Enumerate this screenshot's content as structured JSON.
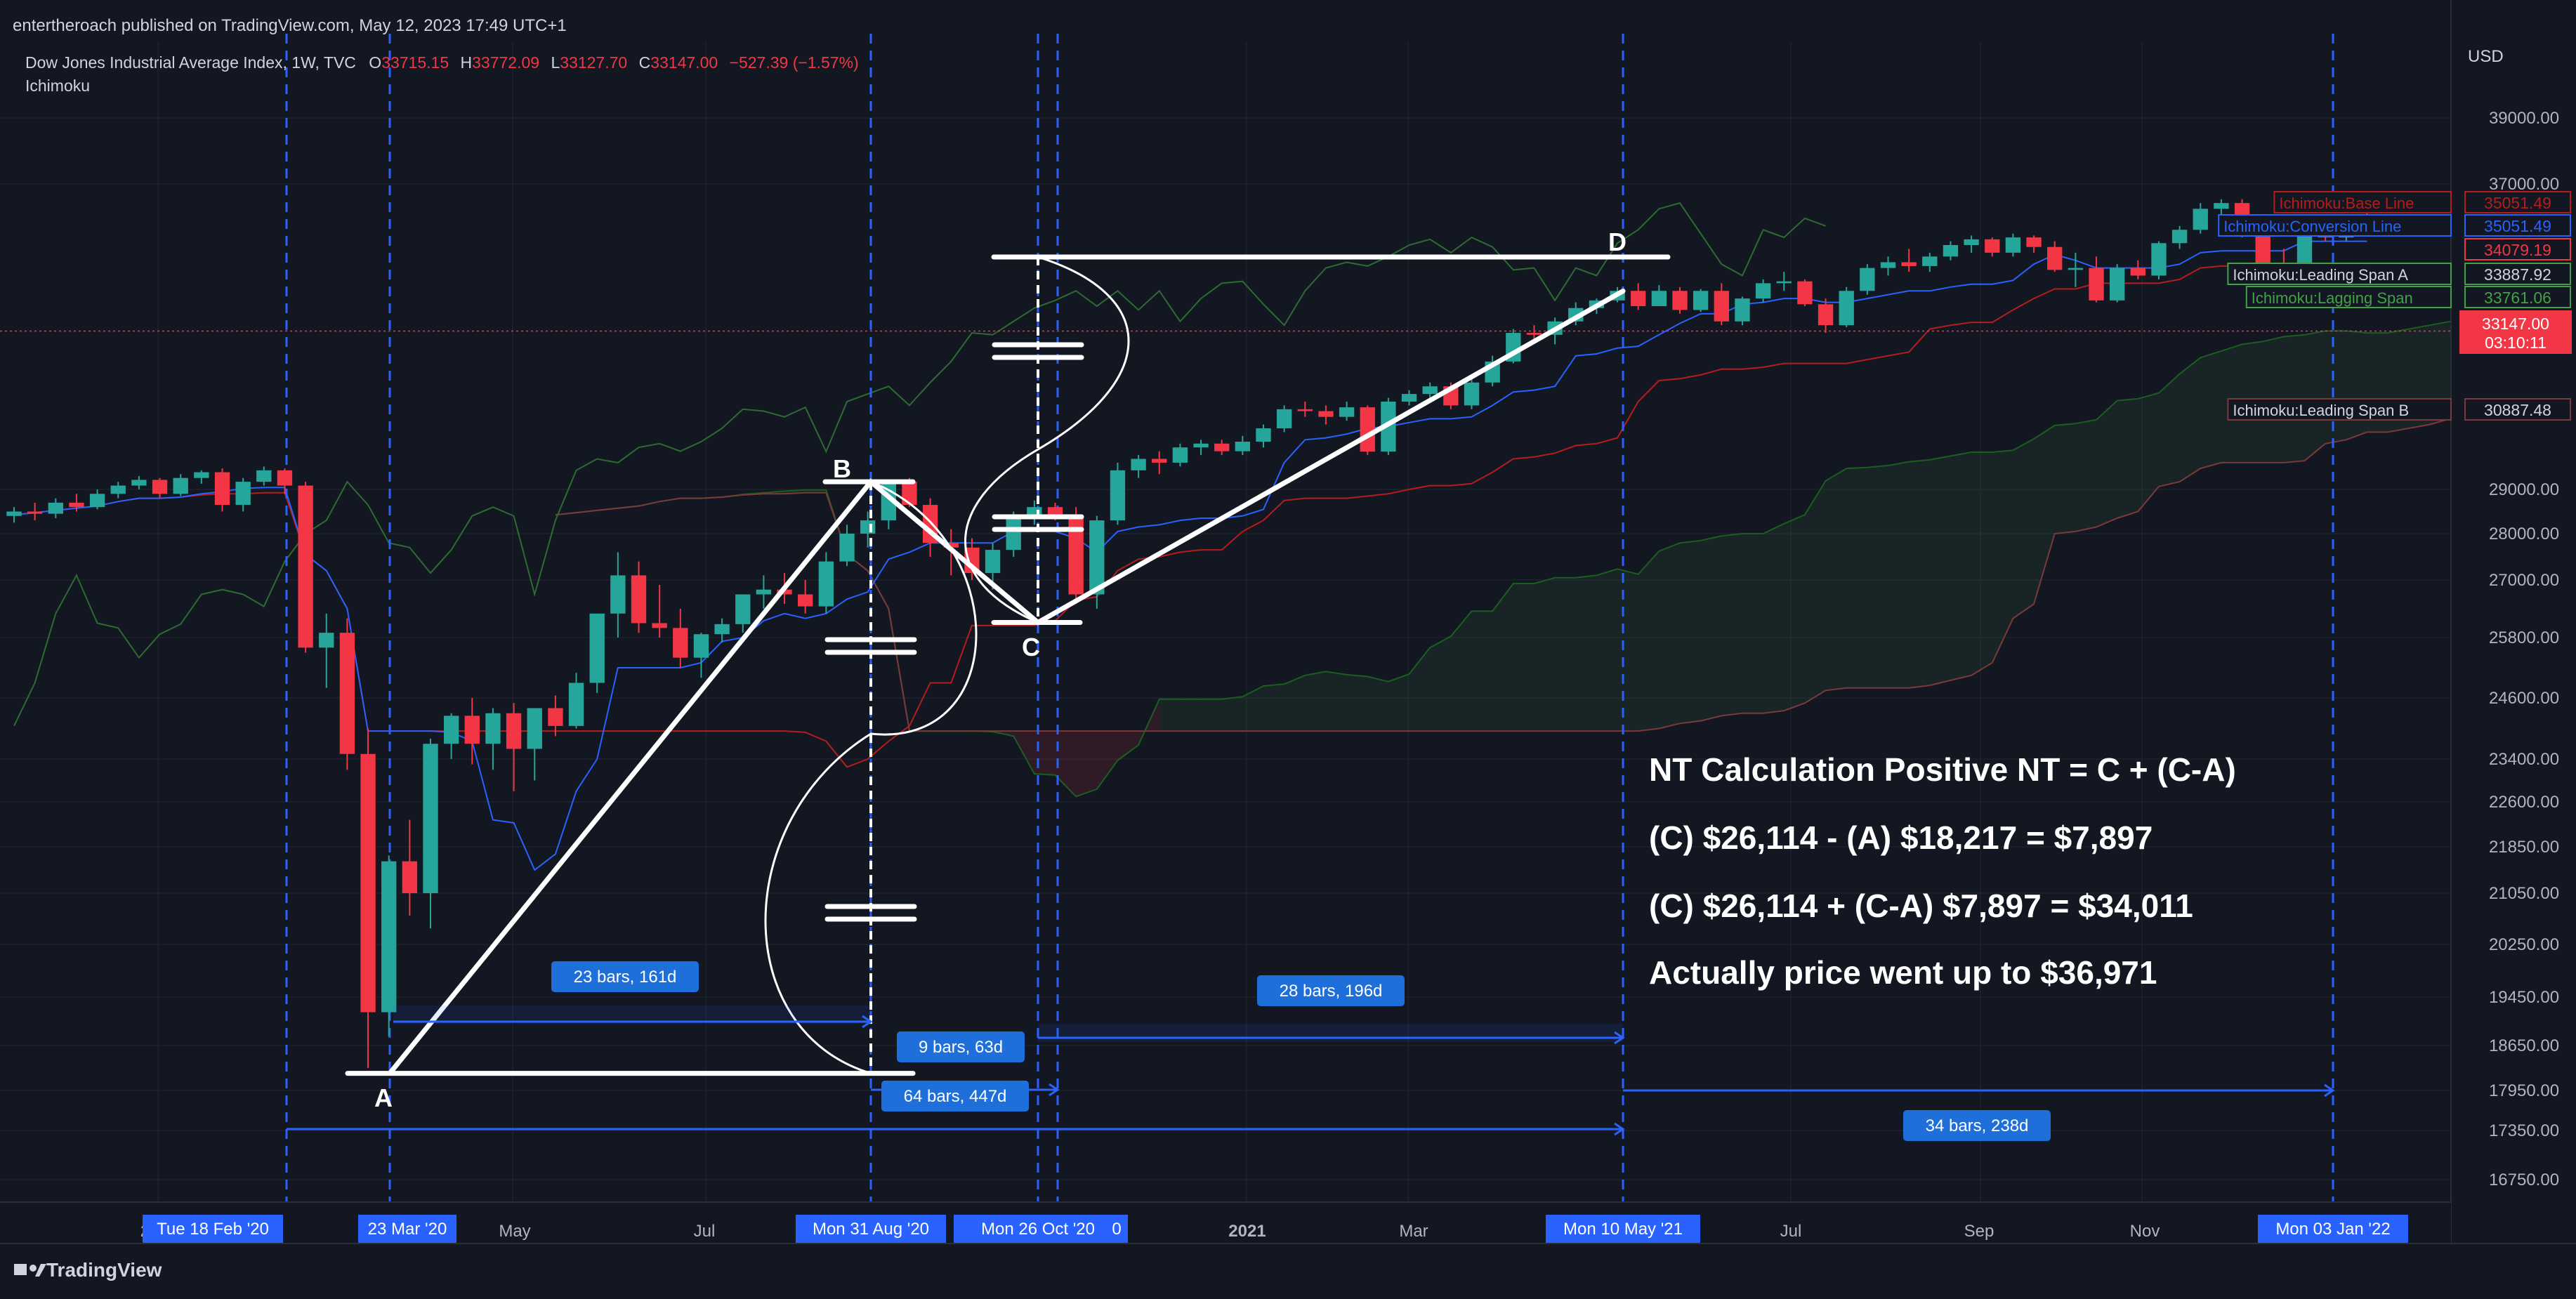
{
  "header": {
    "published": "entertheroach published on TradingView.com, May 12, 2023 17:49 UTC+1",
    "symbol": "Dow Jones Industrial Average Index, 1W, TVC",
    "o_label": "O",
    "o_value": "33715.15",
    "h_label": "H",
    "h_value": "33772.09",
    "l_label": "L",
    "l_value": "33127.70",
    "c_label": "C",
    "c_value": "33147.00",
    "change": "−527.39 (−1.57%)",
    "indicator": "Ichimoku"
  },
  "currency": "USD",
  "footer_brand": "TradingView",
  "colors": {
    "background": "#131722",
    "up": "#26a69a",
    "down": "#f23645",
    "conversion": "#2962ff",
    "base": "#b71c1c",
    "span_a": "#1b5e20",
    "span_b": "#7b3a3a",
    "lagging": "#43a047",
    "drawing": "#ffffff",
    "marker_blue": "#2962ff"
  },
  "chart_data": {
    "type": "candlestick",
    "title": "Dow Jones Industrial Average Index, 1W, TVC",
    "ylabel": "USD",
    "y_ticks": [
      16750,
      17350,
      17950,
      18650,
      19450,
      20250,
      21050,
      21850,
      22600,
      23400,
      24600,
      25800,
      27000,
      28000,
      29000,
      37000,
      39000
    ],
    "y_tick_labels": [
      "16750.00",
      "17350.00",
      "17950.00",
      "18650.00",
      "19450.00",
      "20250.00",
      "21050.00",
      "21850.00",
      "22600.00",
      "23400.00",
      "24600.00",
      "25800.00",
      "27000.00",
      "28000.00",
      "29000.00",
      "37000.00",
      "39000.00"
    ],
    "x_ticks": [
      "2020",
      "May",
      "Jul",
      "2021",
      "Mar",
      "Jul",
      "Sep",
      "Nov"
    ],
    "x_markers": [
      "Tue 18 Feb '20",
      "23 Mar '20",
      "Mon 31 Aug '20",
      "Mon 26 Oct '20",
      "0",
      "Mon 10 May '21",
      "Mon 03 Jan '22"
    ],
    "last_price": "33147.00",
    "countdown": "03:10:11",
    "indicator_labels": [
      {
        "name": "Ichimoku:Base Line",
        "value": "35051.49"
      },
      {
        "name": "Ichimoku:Conversion Line",
        "value": "35051.49"
      },
      {
        "name": "",
        "value": "34079.19"
      },
      {
        "name": "Ichimoku:Leading Span A",
        "value": "33887.92"
      },
      {
        "name": "Ichimoku:Lagging Span",
        "value": "33761.06"
      },
      {
        "name": "Ichimoku:Leading Span B",
        "value": "30887.48"
      }
    ],
    "pattern_points": [
      {
        "label": "A",
        "date": "23 Mar '20",
        "price": 18217
      },
      {
        "label": "B",
        "date": "Mon 31 Aug '20",
        "price": 29200
      },
      {
        "label": "C",
        "date": "Mon 26 Oct '20",
        "price": 26114
      },
      {
        "label": "D",
        "date": "Mon 10 May '21",
        "price": 34011
      }
    ],
    "range_labels": [
      "23 bars, 161d",
      "9 bars, 63d",
      "64 bars, 447d",
      "28 bars, 196d",
      "34 bars, 238d"
    ],
    "candles": [
      [
        28400,
        28600,
        28250,
        28500
      ],
      [
        28500,
        28700,
        28300,
        28450
      ],
      [
        28450,
        28800,
        28350,
        28700
      ],
      [
        28700,
        28900,
        28500,
        28600
      ],
      [
        28600,
        29000,
        28550,
        28900
      ],
      [
        28900,
        29200,
        28800,
        29100
      ],
      [
        29100,
        29350,
        29000,
        29250
      ],
      [
        29250,
        29300,
        28800,
        28900
      ],
      [
        28900,
        29400,
        28850,
        29300
      ],
      [
        29300,
        29500,
        29150,
        29450
      ],
      [
        29450,
        29550,
        28500,
        28650
      ],
      [
        28650,
        29300,
        28500,
        29200
      ],
      [
        29200,
        29600,
        29100,
        29500
      ],
      [
        29500,
        29550,
        28900,
        29100
      ],
      [
        29100,
        29200,
        25500,
        25600
      ],
      [
        25600,
        26300,
        24800,
        25900
      ],
      [
        25900,
        26200,
        23200,
        23500
      ],
      [
        23500,
        24000,
        18300,
        19200
      ],
      [
        19200,
        21700,
        18800,
        21600
      ],
      [
        21600,
        22300,
        20700,
        21050
      ],
      [
        21050,
        23800,
        20500,
        23700
      ],
      [
        23700,
        24300,
        23400,
        24250
      ],
      [
        24250,
        24600,
        23300,
        23700
      ],
      [
        23700,
        24400,
        23200,
        24300
      ],
      [
        24300,
        24500,
        22800,
        23600
      ],
      [
        23600,
        24350,
        23000,
        24400
      ],
      [
        24400,
        24650,
        23850,
        24050
      ],
      [
        24050,
        25100,
        24000,
        24900
      ],
      [
        24900,
        26300,
        24700,
        26300
      ],
      [
        26300,
        27600,
        25800,
        27100
      ],
      [
        27100,
        27400,
        25900,
        26100
      ],
      [
        26100,
        26900,
        25800,
        26000
      ],
      [
        26000,
        26400,
        25200,
        25400
      ],
      [
        25400,
        25900,
        25000,
        25870
      ],
      [
        25870,
        26200,
        25700,
        26080
      ],
      [
        26080,
        26700,
        25900,
        26700
      ],
      [
        26700,
        27100,
        26400,
        26800
      ],
      [
        26800,
        27150,
        26500,
        26700
      ],
      [
        26700,
        27000,
        26300,
        26450
      ],
      [
        26450,
        27600,
        26300,
        27400
      ],
      [
        27400,
        28200,
        27300,
        28000
      ],
      [
        28000,
        28500,
        27700,
        28300
      ],
      [
        28300,
        29200,
        28100,
        29200
      ],
      [
        29200,
        29300,
        28600,
        28650
      ],
      [
        28650,
        28800,
        27500,
        27800
      ],
      [
        27800,
        28100,
        27100,
        27700
      ],
      [
        27700,
        27900,
        27000,
        27150
      ],
      [
        27150,
        27800,
        26800,
        27650
      ],
      [
        27650,
        28500,
        27500,
        28400
      ],
      [
        28400,
        28750,
        28200,
        28600
      ],
      [
        28600,
        28700,
        28300,
        28400
      ],
      [
        28400,
        28600,
        26500,
        26700
      ],
      [
        26700,
        28400,
        26400,
        28300
      ],
      [
        28300,
        29700,
        28200,
        29500
      ],
      [
        29500,
        29900,
        29300,
        29800
      ],
      [
        29800,
        30000,
        29400,
        29700
      ],
      [
        29700,
        30200,
        29600,
        30100
      ],
      [
        30100,
        30300,
        29900,
        30200
      ],
      [
        30200,
        30300,
        29900,
        30000
      ],
      [
        30000,
        30400,
        29900,
        30250
      ],
      [
        30250,
        30700,
        30100,
        30600
      ],
      [
        30600,
        31200,
        30500,
        31100
      ],
      [
        31100,
        31300,
        30900,
        31050
      ],
      [
        31050,
        31200,
        30700,
        30900
      ],
      [
        30900,
        31300,
        30800,
        31150
      ],
      [
        31150,
        31200,
        29900,
        29990
      ],
      [
        29990,
        31400,
        29900,
        31300
      ],
      [
        31300,
        31600,
        31200,
        31500
      ],
      [
        31500,
        31800,
        31400,
        31700
      ],
      [
        31700,
        31800,
        31100,
        31200
      ],
      [
        31200,
        31900,
        31100,
        31800
      ],
      [
        31800,
        32500,
        31700,
        32350
      ],
      [
        32350,
        33200,
        32300,
        33100
      ],
      [
        33100,
        33300,
        32900,
        33050
      ],
      [
        33050,
        33500,
        32800,
        33400
      ],
      [
        33400,
        33900,
        33300,
        33750
      ],
      [
        33750,
        34000,
        33600,
        33950
      ],
      [
        33950,
        34300,
        33900,
        34200
      ],
      [
        34200,
        34400,
        33700,
        33800
      ],
      [
        33800,
        34350,
        33800,
        34200
      ],
      [
        34200,
        34300,
        33600,
        33700
      ],
      [
        33700,
        34250,
        33650,
        34200
      ],
      [
        34200,
        34400,
        33300,
        33400
      ],
      [
        33400,
        34050,
        33300,
        34000
      ],
      [
        34000,
        34500,
        33900,
        34400
      ],
      [
        34400,
        34700,
        34200,
        34450
      ],
      [
        34450,
        34500,
        33800,
        33850
      ],
      [
        33850,
        34000,
        33100,
        33300
      ],
      [
        33300,
        34300,
        33250,
        34200
      ],
      [
        34200,
        34900,
        34100,
        34800
      ],
      [
        34800,
        35100,
        34600,
        34950
      ],
      [
        34950,
        35300,
        34700,
        34850
      ],
      [
        34850,
        35200,
        34700,
        35100
      ],
      [
        35100,
        35500,
        35000,
        35400
      ],
      [
        35400,
        35650,
        35200,
        35550
      ],
      [
        35550,
        35600,
        35100,
        35200
      ],
      [
        35200,
        35700,
        35100,
        35600
      ],
      [
        35600,
        35650,
        35200,
        35350
      ],
      [
        35350,
        35500,
        34700,
        34750
      ],
      [
        34750,
        35200,
        34300,
        34800
      ],
      [
        34800,
        35100,
        33900,
        33950
      ],
      [
        33950,
        34900,
        33900,
        34800
      ],
      [
        34800,
        35000,
        34500,
        34600
      ],
      [
        34600,
        35500,
        34500,
        35450
      ],
      [
        35450,
        35900,
        35300,
        35800
      ],
      [
        35800,
        36500,
        35700,
        36350
      ],
      [
        36350,
        36600,
        36100,
        36500
      ],
      [
        36500,
        36600,
        35600,
        35700
      ],
      [
        35700,
        36000,
        34800,
        34900
      ],
      [
        34900,
        35300,
        34400,
        34600
      ],
      [
        34600,
        35900,
        34500,
        35800
      ],
      [
        35800,
        36000,
        35500,
        35600
      ],
      [
        35600,
        36200,
        35500,
        36100
      ],
      [
        36100,
        36250,
        35800,
        35900
      ]
    ]
  },
  "annotations": {
    "point_a": "A",
    "point_b": "B",
    "point_c": "C",
    "point_d": "D",
    "nt_title": "NT Calculation Positive NT = C + (C-A)",
    "nt_line1": "(C) $26,114 - (A) $18,217 = $7,897",
    "nt_line2": "(C) $26,114 + (C-A) $7,897 = $34,011",
    "nt_line3": "Actually price went up to $36,971"
  }
}
